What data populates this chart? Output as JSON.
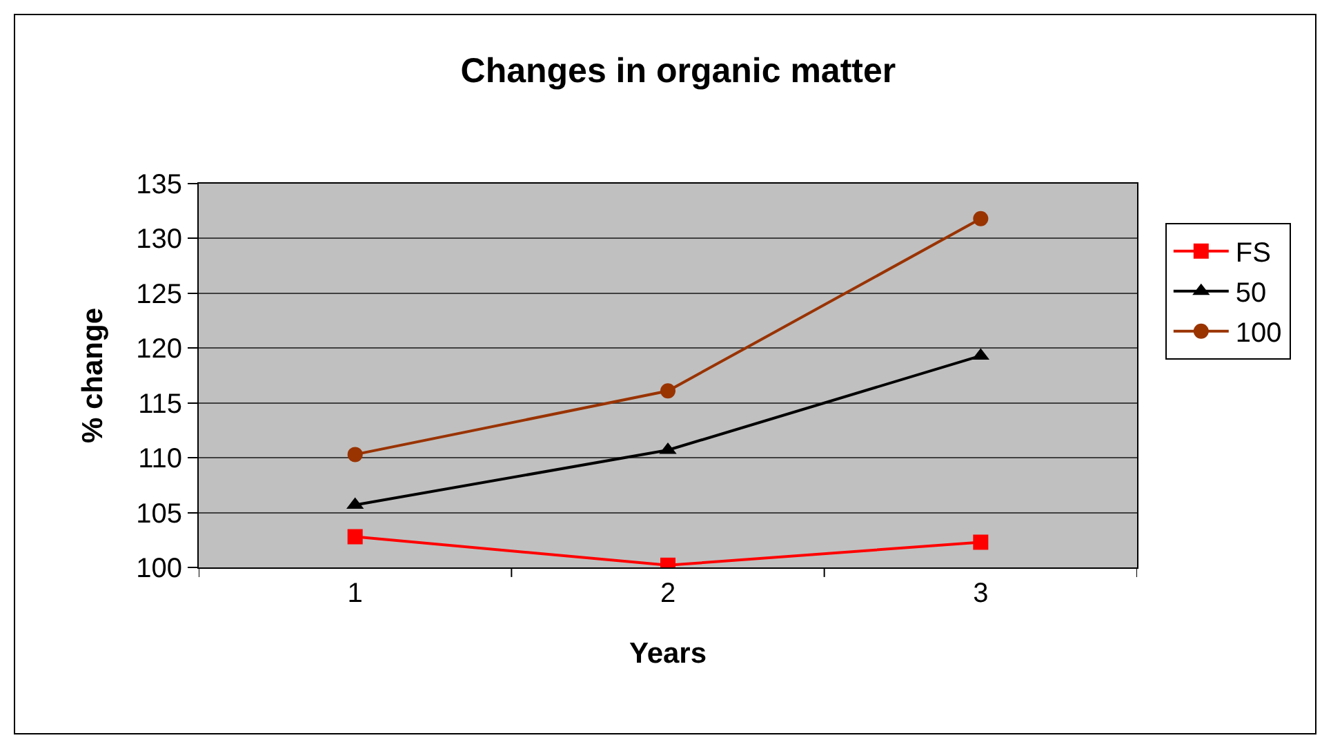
{
  "chart_data": {
    "type": "line",
    "title": "Changes in organic matter",
    "xlabel": "Years",
    "ylabel": "% change",
    "categories": [
      "1",
      "2",
      "3"
    ],
    "series": [
      {
        "name": "FS",
        "color": "#ff0000",
        "marker": "square",
        "values": [
          102.8,
          100.2,
          102.3
        ]
      },
      {
        "name": "50",
        "color": "#000000",
        "marker": "triangle",
        "values": [
          105.7,
          110.7,
          119.3
        ]
      },
      {
        "name": "100",
        "color": "#993300",
        "marker": "circle",
        "values": [
          110.3,
          116.1,
          131.8
        ]
      }
    ],
    "ylim": [
      100,
      135
    ],
    "yticks": [
      100,
      105,
      110,
      115,
      120,
      125,
      130,
      135
    ],
    "grid": "y",
    "legend": "right",
    "line_style": "solid"
  }
}
